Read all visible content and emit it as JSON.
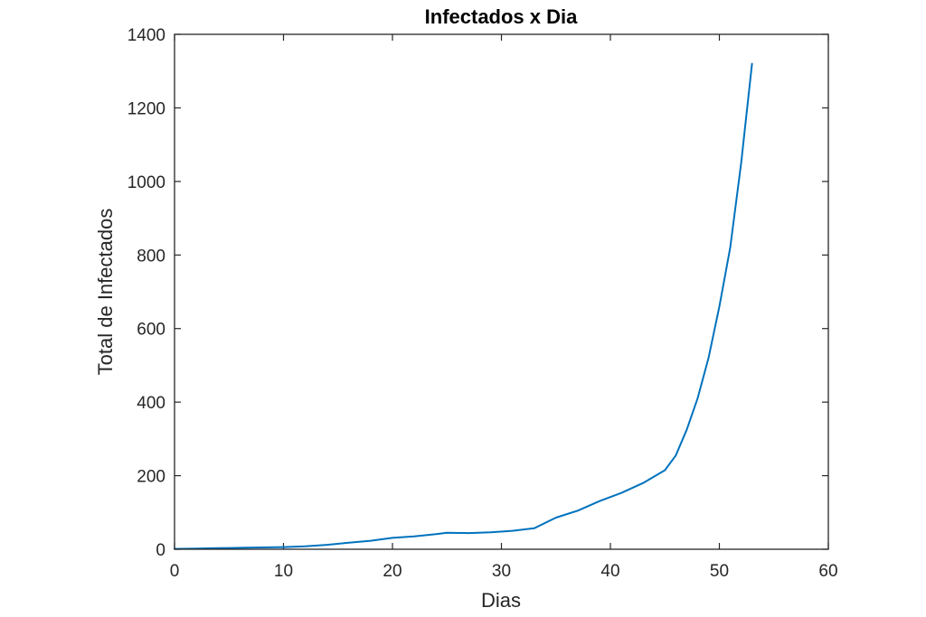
{
  "chart_data": {
    "type": "line",
    "title": "Infectados x Dia",
    "xlabel": "Dias",
    "ylabel": "Total de Infectados",
    "xlim": [
      0,
      60
    ],
    "ylim": [
      0,
      1400
    ],
    "xticks": [
      0,
      10,
      20,
      30,
      40,
      50,
      60
    ],
    "yticks": [
      0,
      200,
      400,
      600,
      800,
      1000,
      1200,
      1400
    ],
    "grid": false,
    "line_color": "#0072BD",
    "series": [
      {
        "x": [
          0,
          2,
          4,
          6,
          8,
          10,
          12,
          14,
          16,
          18,
          20,
          22,
          24,
          25,
          27,
          29,
          31,
          33,
          35,
          37,
          39,
          41,
          43,
          45,
          46,
          47,
          48,
          49,
          50,
          51,
          52,
          53
        ],
        "y": [
          1,
          2,
          3,
          4,
          5,
          6,
          8,
          12,
          18,
          23,
          31,
          35,
          41,
          45,
          44,
          46,
          50,
          57,
          86,
          105,
          131,
          153,
          180,
          215,
          255,
          325,
          410,
          520,
          660,
          820,
          1050,
          1320
        ]
      }
    ]
  }
}
